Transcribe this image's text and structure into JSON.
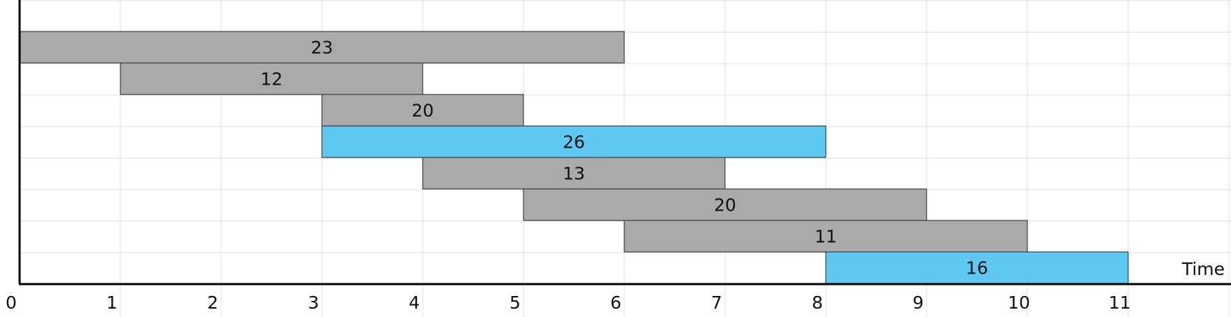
{
  "chart_data": {
    "type": "bar",
    "orientation": "horizontal-timeline",
    "title": "",
    "xlabel": "Time",
    "ylabel": "",
    "xlim": [
      0,
      12
    ],
    "x_ticks": [
      "0",
      "1",
      "2",
      "3",
      "4",
      "5",
      "6",
      "7",
      "8",
      "9",
      "10",
      "11"
    ],
    "grid": true,
    "colors": {
      "default_bar": "#aaaaaa",
      "highlight_bar": "#5ec8f2",
      "bar_border": "#222222",
      "grid": "#dddddd",
      "axis": "#000000"
    },
    "bars": [
      {
        "label": "23",
        "start": 0,
        "end": 6,
        "highlight": false
      },
      {
        "label": "12",
        "start": 1,
        "end": 4,
        "highlight": false
      },
      {
        "label": "20",
        "start": 3,
        "end": 5,
        "highlight": false
      },
      {
        "label": "26",
        "start": 3,
        "end": 8,
        "highlight": true
      },
      {
        "label": "13",
        "start": 4,
        "end": 7,
        "highlight": false
      },
      {
        "label": "20",
        "start": 5,
        "end": 9,
        "highlight": false
      },
      {
        "label": "11",
        "start": 6,
        "end": 10,
        "highlight": false
      },
      {
        "label": "16",
        "start": 8,
        "end": 11,
        "highlight": true
      }
    ]
  }
}
